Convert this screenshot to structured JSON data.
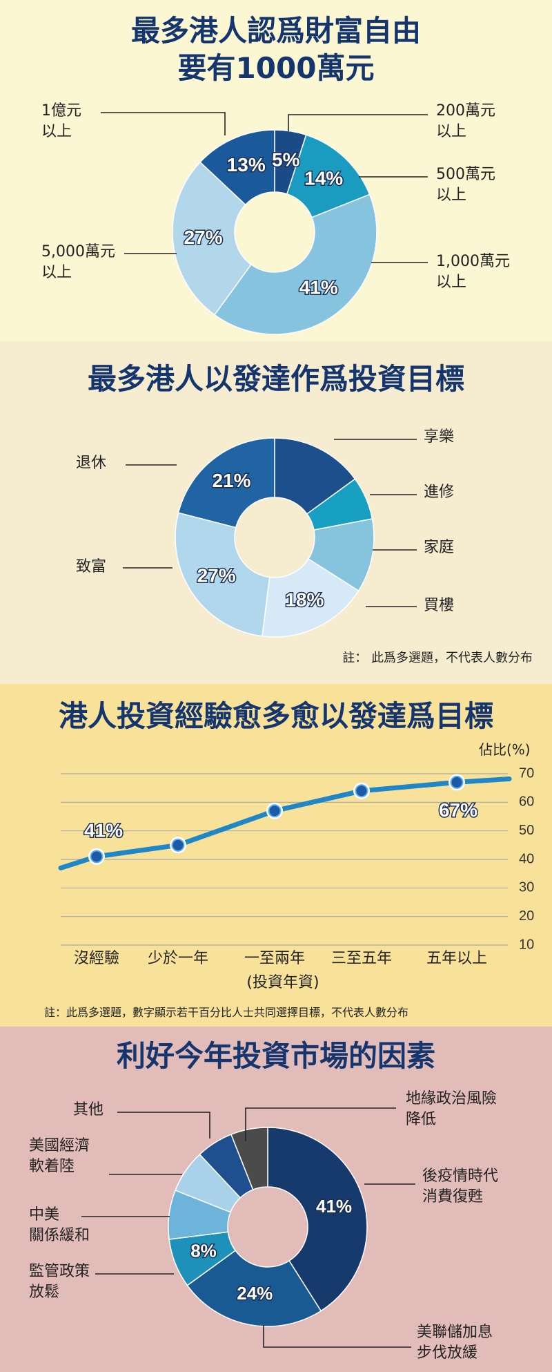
{
  "chart_data": [
    {
      "type": "pie",
      "title": "最多港人認爲財富自由\n要有1000萬元",
      "categories": [
        "200萬元\n以上",
        "500萬元\n以上",
        "1,000萬元\n以上",
        "5,000萬元\n以上",
        "1億元\n以上"
      ],
      "values": [
        5,
        14,
        41,
        27,
        13
      ],
      "labels": [
        "5%",
        "14%",
        "41%",
        "27%",
        "13%"
      ],
      "colors": [
        "#1b4b86",
        "#1a9bc0",
        "#86c3de",
        "#b2d7ea",
        "#1b5a9a"
      ]
    },
    {
      "type": "pie",
      "title": "最多港人以發達作爲投資目標",
      "categories": [
        "享樂",
        "進修",
        "家庭",
        "買樓",
        "致富",
        "退休"
      ],
      "values": [
        15,
        7,
        12,
        18,
        27,
        21
      ],
      "labels": [
        "",
        "",
        "",
        "18%",
        "27%",
        "21%"
      ],
      "colors": [
        "#1c4f8c",
        "#18a0c2",
        "#86c4de",
        "#d6e9f7",
        "#b0d7ec",
        "#2064a3"
      ],
      "note": "註：  此爲多選題，不代表人數分布"
    },
    {
      "type": "line",
      "title": "港人投資經驗愈多愈以發達爲目標",
      "categories": [
        "沒經驗",
        "少於一年",
        "一至兩年",
        "三至五年",
        "五年以上"
      ],
      "values": [
        41,
        45,
        57,
        64,
        67
      ],
      "point_labels": [
        "41%",
        "",
        "",
        "",
        "67%"
      ],
      "ylabel": "佔比(%)",
      "xlabel": "(投資年資)",
      "ylim": [
        10,
        70
      ],
      "yticks": [
        70,
        60,
        50,
        40,
        30,
        20,
        10
      ],
      "grid": true,
      "note": "註：此爲多選題，數字顯示若干百分比人士共同選擇目標，不代表人數分布"
    },
    {
      "type": "pie",
      "title": "利好今年投資市場的因素",
      "categories": [
        "後疫情時代\n消費復甦",
        "美聯儲加息\n步伐放緩",
        "監管政策\n放鬆",
        "中美\n關係緩和",
        "美國經濟\n軟着陸",
        "其他",
        "地緣政治風險\n降低"
      ],
      "values": [
        41,
        24,
        8,
        8,
        7,
        6,
        6
      ],
      "labels": [
        "41%",
        "24%",
        "8%",
        "",
        "",
        "",
        ""
      ],
      "colors": [
        "#153a6b",
        "#1a5a93",
        "#1d91ba",
        "#6cb4da",
        "#a9d2ea",
        "#1f4f8f",
        "#4b4b4b"
      ]
    }
  ]
}
